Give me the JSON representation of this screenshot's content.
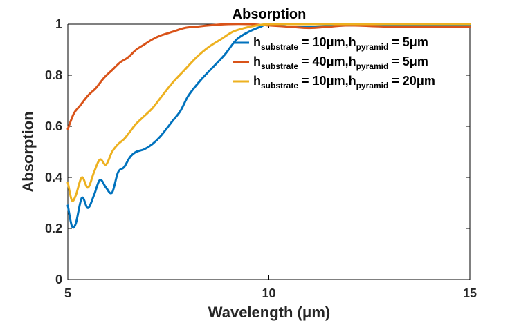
{
  "chart_data": {
    "type": "line",
    "title": "Absorption",
    "xlabel": "Wavelength (μm)",
    "ylabel": "Absorption",
    "xlim": [
      5,
      15
    ],
    "ylim": [
      0,
      1
    ],
    "x_ticks": [
      5,
      10,
      15
    ],
    "x_tick_labels": [
      "5",
      "10",
      "15"
    ],
    "y_ticks": [
      0,
      0.2,
      0.4,
      0.6,
      0.8,
      1
    ],
    "y_tick_labels": [
      "0",
      "0.2",
      "0.4",
      "0.6",
      "0.8",
      "1"
    ],
    "grid": false,
    "legend_position": "top-right",
    "series": [
      {
        "name": "h_substrate = 10μm, h_pyramid = 5μm",
        "legend": {
          "h1": "h",
          "sub1": "substrate",
          "mid": " = 10μm,h",
          "sub2": "pyramid",
          "end": " = 5μm"
        },
        "color": "#0072BD",
        "x": [
          5.0,
          5.1,
          5.2,
          5.35,
          5.5,
          5.65,
          5.8,
          5.95,
          6.1,
          6.25,
          6.4,
          6.55,
          6.7,
          6.9,
          7.1,
          7.3,
          7.6,
          7.8,
          8.0,
          8.3,
          8.6,
          8.9,
          9.2,
          9.5,
          9.8,
          10.0,
          10.5,
          11.0,
          12.0,
          13.0,
          14.0,
          15.0
        ],
        "y": [
          0.29,
          0.21,
          0.22,
          0.32,
          0.28,
          0.33,
          0.39,
          0.36,
          0.34,
          0.42,
          0.44,
          0.48,
          0.5,
          0.51,
          0.53,
          0.56,
          0.62,
          0.66,
          0.72,
          0.78,
          0.83,
          0.88,
          0.94,
          0.97,
          0.99,
          1.0,
          0.99,
          0.99,
          0.995,
          0.995,
          0.995,
          0.995
        ]
      },
      {
        "name": "h_substrate = 40μm, h_pyramid = 5μm",
        "legend": {
          "h1": "h",
          "sub1": "substrate",
          "mid": " = 40μm,h",
          "sub2": "pyramid",
          "end": " = 5μm"
        },
        "color": "#D95319",
        "x": [
          5.0,
          5.15,
          5.3,
          5.5,
          5.7,
          5.9,
          6.1,
          6.3,
          6.5,
          6.7,
          6.9,
          7.1,
          7.3,
          7.6,
          7.9,
          8.2,
          8.5,
          9.0,
          9.5,
          10.0,
          10.5,
          11.0,
          11.5,
          12.0,
          13.0,
          14.0,
          15.0
        ],
        "y": [
          0.59,
          0.65,
          0.68,
          0.72,
          0.75,
          0.79,
          0.82,
          0.85,
          0.87,
          0.9,
          0.92,
          0.94,
          0.955,
          0.97,
          0.985,
          0.99,
          0.995,
          1.0,
          1.0,
          0.995,
          0.99,
          0.985,
          0.99,
          0.995,
          0.99,
          0.99,
          0.99
        ]
      },
      {
        "name": "h_substrate = 10μm, h_pyramid = 20μm",
        "legend": {
          "h1": "h",
          "sub1": "substrate",
          "mid": " = 10μm,h",
          "sub2": "pyramid",
          "end": " = 20μm"
        },
        "color": "#EDB120",
        "x": [
          5.0,
          5.1,
          5.2,
          5.35,
          5.5,
          5.65,
          5.8,
          5.95,
          6.1,
          6.25,
          6.4,
          6.55,
          6.7,
          6.9,
          7.1,
          7.3,
          7.6,
          7.9,
          8.2,
          8.5,
          8.8,
          9.1,
          9.4,
          9.7,
          10.0,
          10.5,
          11.0,
          12.0,
          13.0,
          14.0,
          15.0
        ],
        "y": [
          0.38,
          0.31,
          0.33,
          0.4,
          0.36,
          0.42,
          0.47,
          0.45,
          0.5,
          0.53,
          0.55,
          0.58,
          0.61,
          0.64,
          0.67,
          0.71,
          0.77,
          0.82,
          0.87,
          0.91,
          0.94,
          0.97,
          0.985,
          0.995,
          1.0,
          1.0,
          1.0,
          1.0,
          1.0,
          1.0,
          1.0
        ]
      }
    ]
  }
}
